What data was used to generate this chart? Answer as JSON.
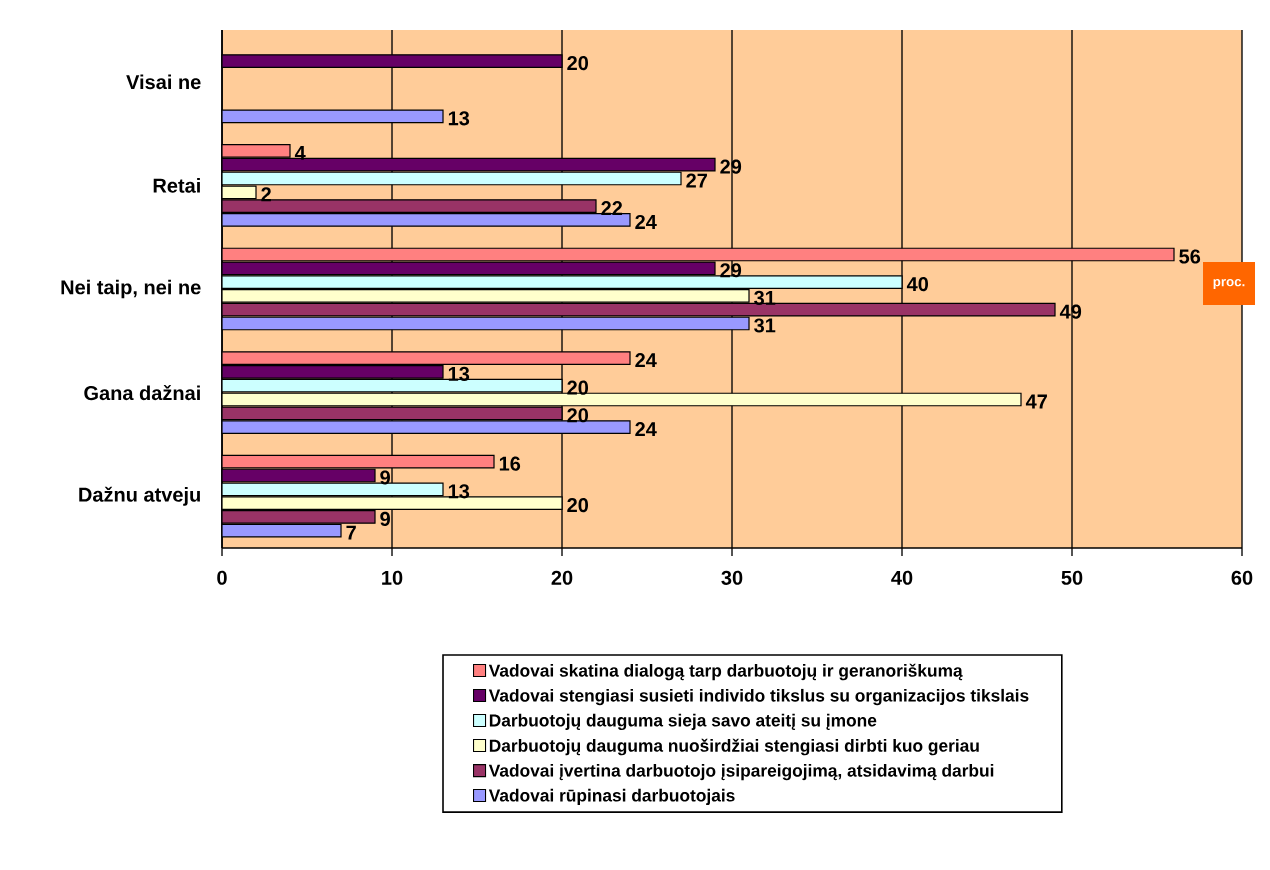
{
  "chart_data": {
    "type": "bar",
    "orientation": "horizontal",
    "categories": [
      "Visai ne",
      "Retai",
      "Nei taip, nei ne",
      "Gana dažnai",
      "Dažnu atveju"
    ],
    "series": [
      {
        "name": "Vadovai skatina dialogą tarp darbuotojų ir geranoriškumą",
        "color": "#ff8080",
        "values": [
          null,
          4,
          56,
          24,
          16
        ]
      },
      {
        "name": "Vadovai stengiasi susieti individo tikslus  su organizacijos tikslais",
        "color": "#660066",
        "values": [
          20,
          29,
          29,
          13,
          9
        ]
      },
      {
        "name": "Darbuotojų dauguma sieja savo ateitį su įmone",
        "color": "#ccffff",
        "values": [
          null,
          27,
          40,
          20,
          13
        ]
      },
      {
        "name": "Darbuotojų dauguma nuoširdžiai stengiasi dirbti kuo geriau",
        "color": "#ffffcc",
        "values": [
          null,
          2,
          31,
          47,
          20
        ]
      },
      {
        "name": "Vadovai įvertina darbuotojo įsipareigojimą, atsidavimą darbui",
        "color": "#993366",
        "values": [
          null,
          22,
          49,
          20,
          9
        ]
      },
      {
        "name": "Vadovai rūpinasi darbuotojais",
        "color": "#9999ff",
        "values": [
          13,
          24,
          31,
          24,
          7
        ]
      }
    ],
    "xlim": [
      0,
      60
    ],
    "xticks": [
      0,
      10,
      20,
      30,
      40,
      50,
      60
    ],
    "grid": "x",
    "legend": "bottom",
    "data_labels": true,
    "annotations": [
      "proc."
    ]
  }
}
